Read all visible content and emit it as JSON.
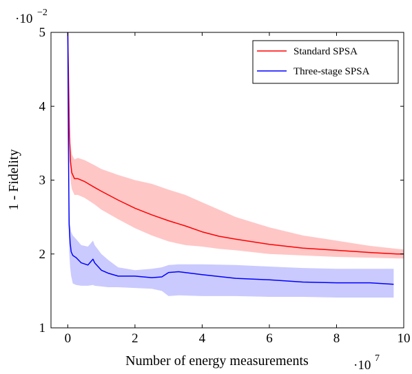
{
  "chart_data": {
    "type": "line",
    "title": "",
    "xlabel": "Number of energy measurements",
    "ylabel": "1 - Fidelity",
    "x_multiplier": {
      "base": "·10",
      "exponent": "7"
    },
    "y_multiplier": {
      "base": "·10",
      "exponent": "−2"
    },
    "xlim": [
      -0.5,
      10
    ],
    "ylim": [
      1,
      5
    ],
    "x_ticks": [
      0,
      2,
      4,
      6,
      8,
      10
    ],
    "y_ticks": [
      1,
      2,
      3,
      4,
      5
    ],
    "grid": false,
    "legend_position": "top-right",
    "series": [
      {
        "name": "Standard SPSA",
        "color": "#ff0000",
        "band_color": "#ffb3b3",
        "x": [
          0.0,
          0.03,
          0.05,
          0.08,
          0.12,
          0.2,
          0.3,
          0.5,
          0.8,
          1.0,
          1.5,
          2.0,
          2.5,
          3.0,
          3.5,
          4.0,
          4.5,
          5.0,
          6.0,
          7.0,
          8.0,
          9.0,
          9.8,
          10.0
        ],
        "y": [
          5.0,
          4.2,
          3.6,
          3.25,
          3.1,
          3.02,
          3.02,
          2.98,
          2.9,
          2.85,
          2.73,
          2.62,
          2.53,
          2.45,
          2.38,
          2.3,
          2.24,
          2.2,
          2.13,
          2.08,
          2.05,
          2.02,
          2.0,
          2.0
        ],
        "upper": [
          5.0,
          4.5,
          3.9,
          3.5,
          3.35,
          3.28,
          3.3,
          3.27,
          3.2,
          3.15,
          3.07,
          3.0,
          2.95,
          2.87,
          2.8,
          2.7,
          2.6,
          2.5,
          2.36,
          2.25,
          2.18,
          2.11,
          2.07,
          2.06
        ],
        "lower": [
          5.0,
          3.9,
          3.3,
          3.0,
          2.88,
          2.8,
          2.8,
          2.76,
          2.67,
          2.6,
          2.47,
          2.35,
          2.25,
          2.17,
          2.12,
          2.1,
          2.07,
          2.05,
          2.0,
          1.98,
          1.96,
          1.95,
          1.94,
          1.94
        ]
      },
      {
        "name": "Three-stage SPSA",
        "color": "#0000ff",
        "band_color": "#b8b8ff",
        "x": [
          0.0,
          0.02,
          0.04,
          0.07,
          0.1,
          0.15,
          0.25,
          0.4,
          0.6,
          0.75,
          0.8,
          1.0,
          1.2,
          1.5,
          2.0,
          2.5,
          2.8,
          3.0,
          3.3,
          4.0,
          5.0,
          6.0,
          7.0,
          8.0,
          9.0,
          9.7
        ],
        "y": [
          5.0,
          3.4,
          2.4,
          2.15,
          2.03,
          1.98,
          1.95,
          1.88,
          1.85,
          1.93,
          1.88,
          1.78,
          1.74,
          1.7,
          1.7,
          1.68,
          1.69,
          1.75,
          1.76,
          1.72,
          1.67,
          1.65,
          1.62,
          1.61,
          1.61,
          1.59
        ],
        "upper": [
          5.0,
          3.8,
          2.8,
          2.4,
          2.3,
          2.25,
          2.2,
          2.12,
          2.1,
          2.18,
          2.12,
          2.0,
          1.92,
          1.82,
          1.78,
          1.8,
          1.82,
          1.85,
          1.86,
          1.86,
          1.85,
          1.83,
          1.81,
          1.8,
          1.8,
          1.8
        ],
        "lower": [
          5.0,
          3.0,
          2.05,
          1.82,
          1.7,
          1.6,
          1.58,
          1.57,
          1.57,
          1.58,
          1.57,
          1.56,
          1.55,
          1.55,
          1.54,
          1.53,
          1.5,
          1.43,
          1.44,
          1.43,
          1.43,
          1.42,
          1.42,
          1.41,
          1.41,
          1.41
        ]
      }
    ]
  }
}
